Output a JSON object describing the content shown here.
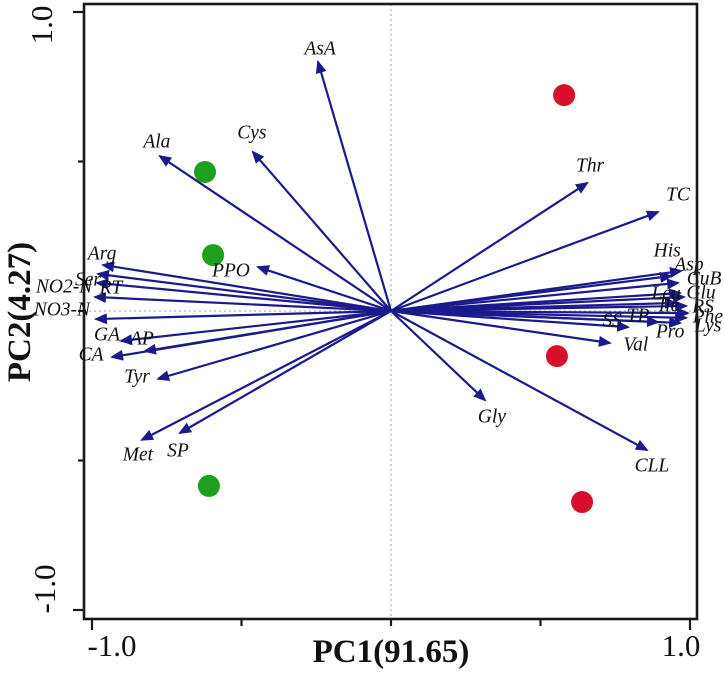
{
  "axes": {
    "x": {
      "label": "PC1(91.65)",
      "ticks": [
        "-1.0",
        "1.0"
      ]
    },
    "y": {
      "label": "PC2(4.27)",
      "ticks": [
        "1.0",
        "-1.0"
      ]
    }
  },
  "colors": {
    "arrow": "#1a1a8c",
    "green_point": "#1da01d",
    "red_point": "#d8102c",
    "border": "#1a1a1a",
    "dotted_line": "#b4b4b4",
    "text": "#111111"
  },
  "chart_data": {
    "type": "scatter",
    "subtype": "pca-biplot",
    "title": "",
    "xlabel": "PC1(91.65)",
    "ylabel": "PC2(4.27)",
    "xlim": [
      -1.03,
      1.03
    ],
    "ylim": [
      -1.03,
      1.03
    ],
    "x_tick_values": [
      -1.0,
      -0.5,
      0,
      0.5,
      1.0
    ],
    "y_tick_values": [
      -1.0,
      -0.5,
      0,
      0.5,
      1.0
    ],
    "labeled_tick_values": [
      -1.0,
      1.0
    ],
    "grid": "dotted zero lines only",
    "legend_position": "none",
    "vectors": [
      {
        "label": "AsA",
        "x": -0.244,
        "y": 0.833,
        "ldx": 2,
        "ldy": -12
      },
      {
        "label": "Cys",
        "x": -0.462,
        "y": 0.532,
        "ldx": -1,
        "ldy": -18
      },
      {
        "label": "Ala",
        "x": -0.773,
        "y": 0.518,
        "ldx": -3,
        "ldy": -13
      },
      {
        "label": "Arg",
        "x": -0.963,
        "y": 0.154,
        "ldx": -1,
        "ldy": -10
      },
      {
        "label": "Ser",
        "x": -0.98,
        "y": 0.124,
        "ldx": -10,
        "ldy": 7
      },
      {
        "label": "NO2-N",
        "x": -0.983,
        "y": 0.094,
        "ldx": -33,
        "ldy": 5
      },
      {
        "label": "RT",
        "x": -0.99,
        "y": 0.047,
        "ldx": 16,
        "ldy": -8
      },
      {
        "label": "NO3-N",
        "x": -0.987,
        "y": -0.027,
        "ldx": -34,
        "ldy": -8
      },
      {
        "label": "PPO",
        "x": -0.445,
        "y": 0.147,
        "ldx": -27,
        "ldy": 5
      },
      {
        "label": "GA",
        "x": -0.903,
        "y": -0.1,
        "ldx": -14,
        "ldy": -5
      },
      {
        "label": "AP",
        "x": -0.823,
        "y": -0.134,
        "ldx": -3,
        "ldy": -11
      },
      {
        "label": "CA",
        "x": -0.933,
        "y": -0.154,
        "ldx": -21,
        "ldy": -1
      },
      {
        "label": "Tyr",
        "x": -0.779,
        "y": -0.227,
        "ldx": -21,
        "ldy": -1
      },
      {
        "label": "Met",
        "x": -0.833,
        "y": -0.431,
        "ldx": -4,
        "ldy": 16
      },
      {
        "label": "SP",
        "x": -0.706,
        "y": -0.408,
        "ldx": -2,
        "ldy": 19
      },
      {
        "label": "Thr",
        "x": 0.656,
        "y": 0.428,
        "ldx": 3,
        "ldy": -16
      },
      {
        "label": "TC",
        "x": 0.893,
        "y": 0.331,
        "ldx": 20,
        "ldy": -16
      },
      {
        "label": "His",
        "x": 0.937,
        "y": 0.117,
        "ldx": -4,
        "ldy": -24
      },
      {
        "label": "Asp",
        "x": 0.97,
        "y": 0.134,
        "ldx": 8,
        "ldy": -5
      },
      {
        "label": "CuB",
        "x": 0.96,
        "y": 0.094,
        "ldx": 26,
        "ldy": -3
      },
      {
        "label": "Leu",
        "x": 0.967,
        "y": 0.06,
        "ldx": -14,
        "ldy": 2
      },
      {
        "label": "Glu",
        "x": 0.98,
        "y": 0.047,
        "ldx": 17,
        "ldy": -3
      },
      {
        "label": "Ile",
        "x": 0.953,
        "y": 0.027,
        "ldx": -7,
        "ldy": 4
      },
      {
        "label": "RS",
        "x": 0.987,
        "y": 0.017,
        "ldx": 17,
        "ldy": 2
      },
      {
        "label": "Phe",
        "x": 0.993,
        "y": -0.007,
        "ldx": 20,
        "ldy": 5
      },
      {
        "label": "Lys",
        "x": 0.987,
        "y": -0.023,
        "ldx": 22,
        "ldy": 9
      },
      {
        "label": "Pro",
        "x": 0.967,
        "y": -0.04,
        "ldx": -10,
        "ldy": 10
      },
      {
        "label": "TP",
        "x": 0.893,
        "y": -0.037,
        "ldx": -20,
        "ldy": -5
      },
      {
        "label": "SS",
        "x": 0.793,
        "y": -0.054,
        "ldx": -16,
        "ldy": -5
      },
      {
        "label": "Val",
        "x": 0.732,
        "y": -0.107,
        "ldx": 26,
        "ldy": 3
      },
      {
        "label": "Gly",
        "x": 0.314,
        "y": -0.298,
        "ldx": 7,
        "ldy": 18
      },
      {
        "label": "CLL",
        "x": 0.856,
        "y": -0.465,
        "ldx": 5,
        "ldy": 17
      }
    ],
    "points": [
      {
        "series": "green",
        "x": -0.622,
        "y": 0.465
      },
      {
        "series": "green",
        "x": -0.595,
        "y": 0.187
      },
      {
        "series": "green",
        "x": -0.609,
        "y": -0.585
      },
      {
        "series": "red",
        "x": 0.579,
        "y": 0.722
      },
      {
        "series": "red",
        "x": 0.555,
        "y": -0.151
      },
      {
        "series": "red",
        "x": 0.639,
        "y": -0.639
      }
    ]
  }
}
